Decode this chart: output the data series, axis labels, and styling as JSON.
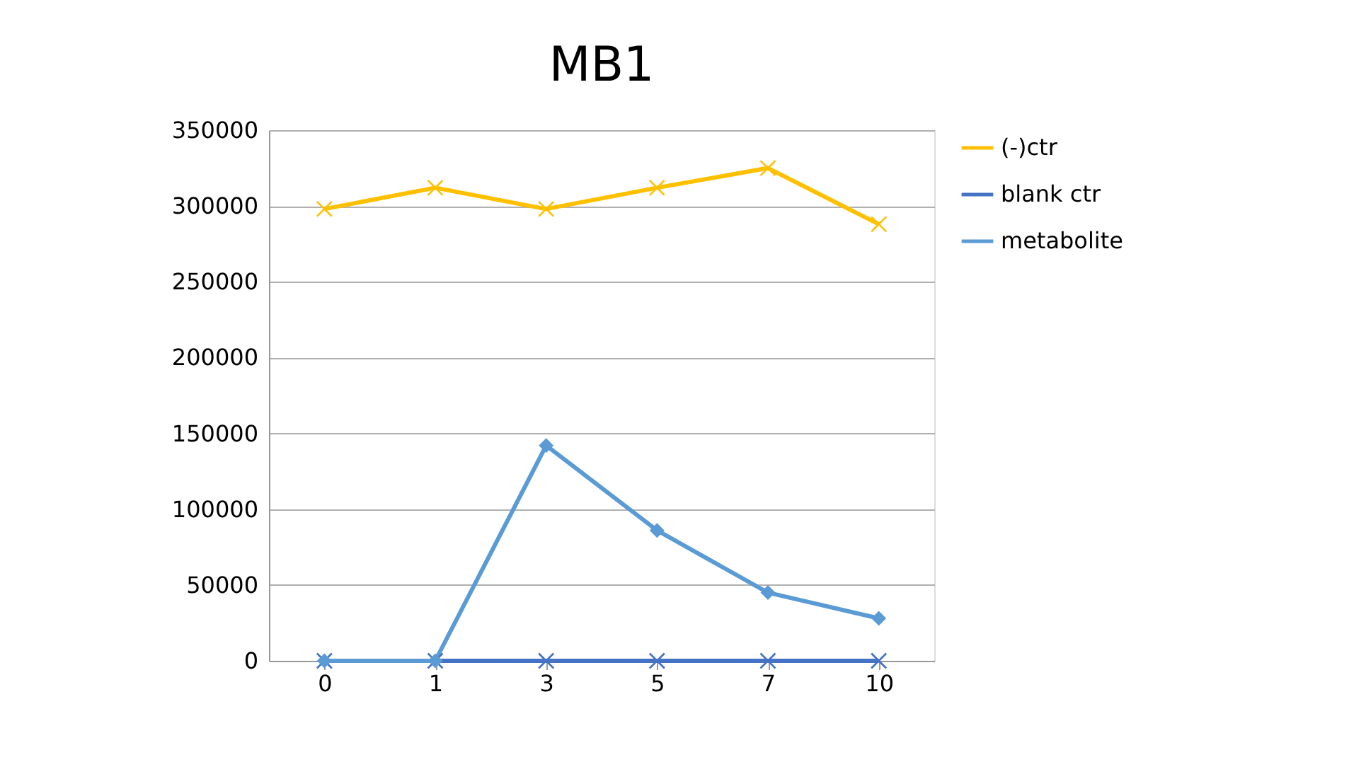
{
  "chart_data": {
    "type": "line",
    "title": "MB1",
    "categories": [
      "0",
      "1",
      "3",
      "5",
      "7",
      "10"
    ],
    "series": [
      {
        "name": "(-)ctr",
        "color": "#ffc000",
        "marker": "cross",
        "values": [
          298000,
          312000,
          298000,
          312000,
          325000,
          288000
        ]
      },
      {
        "name": "blank ctr",
        "color": "#4472c4",
        "marker": "cross",
        "values": [
          0,
          0,
          0,
          0,
          0,
          0
        ]
      },
      {
        "name": "metabolite",
        "color": "#5b9bd5",
        "marker": "diamond",
        "values": [
          0,
          0,
          142000,
          86000,
          45000,
          28000
        ]
      }
    ],
    "ylim": [
      0,
      350000
    ],
    "yticks": [
      0,
      50000,
      100000,
      150000,
      200000,
      250000,
      300000,
      350000
    ],
    "grid": "y",
    "legend": "right"
  }
}
